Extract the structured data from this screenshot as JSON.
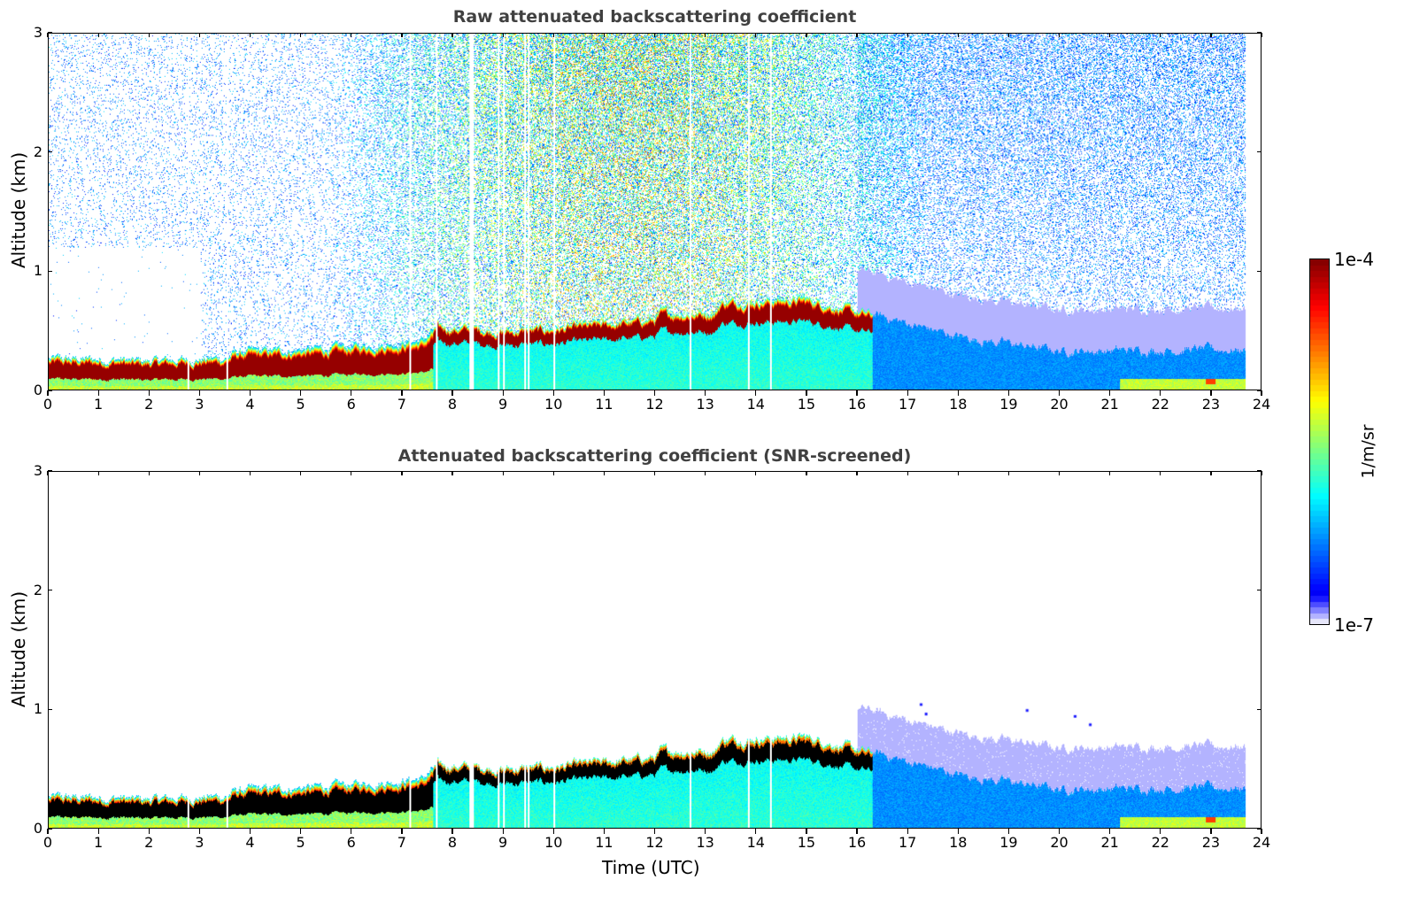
{
  "chart_data": [
    {
      "type": "heatmap",
      "title": "Raw attenuated backscattering coefficient",
      "xlabel": "",
      "ylabel": "Altitude (km)",
      "xlim": [
        0,
        24
      ],
      "ylim": [
        0,
        3
      ],
      "xticks": [
        "0",
        "1",
        "2",
        "3",
        "4",
        "5",
        "6",
        "7",
        "8",
        "9",
        "10",
        "11",
        "12",
        "13",
        "14",
        "15",
        "16",
        "17",
        "18",
        "19",
        "20",
        "21",
        "22",
        "23",
        "24"
      ],
      "yticks": [
        "0",
        "1",
        "2",
        "3"
      ],
      "data_end_time": 23.7,
      "screened": false
    },
    {
      "type": "heatmap",
      "title": "Attenuated backscattering coefficient (SNR-screened)",
      "xlabel": "Time (UTC)",
      "ylabel": "Altitude (km)",
      "xlim": [
        0,
        24
      ],
      "ylim": [
        0,
        3
      ],
      "xticks": [
        "0",
        "1",
        "2",
        "3",
        "4",
        "5",
        "6",
        "7",
        "8",
        "9",
        "10",
        "11",
        "12",
        "13",
        "14",
        "15",
        "16",
        "17",
        "18",
        "19",
        "20",
        "21",
        "22",
        "23",
        "24"
      ],
      "yticks": [
        "0",
        "1",
        "2",
        "3"
      ],
      "data_end_time": 23.7,
      "screened": true
    }
  ],
  "layer_top": {
    "time_utc": [
      0,
      1.5,
      1.6,
      3.5,
      3.7,
      5.5,
      6.3,
      7.4,
      7.7,
      8.5,
      9.0,
      10.0,
      11.0,
      12.0,
      12.1,
      13.2,
      13.3,
      14.0,
      15.0,
      15.5,
      16.0,
      16.5,
      17.0,
      18.0,
      19.0,
      20.0,
      21.0,
      22.0,
      23.7
    ],
    "altitude_km": [
      0.26,
      0.26,
      0.24,
      0.27,
      0.32,
      0.35,
      0.38,
      0.42,
      0.53,
      0.52,
      0.5,
      0.52,
      0.56,
      0.6,
      0.65,
      0.66,
      0.75,
      0.76,
      0.77,
      0.72,
      0.66,
      0.62,
      0.56,
      0.45,
      0.39,
      0.33,
      0.33,
      0.34,
      0.34
    ]
  },
  "data_gaps_utc": [
    2.75,
    3.52,
    7.15,
    7.68,
    8.35,
    8.4,
    8.9,
    9.0,
    9.42,
    9.5,
    10.0,
    12.7,
    13.85,
    14.3
  ],
  "colorbar": {
    "label": "1/m/sr",
    "max_label": "1e-4",
    "min_label": "1e-7",
    "range": [
      1e-07,
      0.0001
    ],
    "colormap": "jet",
    "screened_overflow_color": "#000000",
    "low_colors": [
      "#e6e6fa",
      "#b3b3ff",
      "#8080ff",
      "#4d4dff",
      "#1a1aff"
    ]
  }
}
